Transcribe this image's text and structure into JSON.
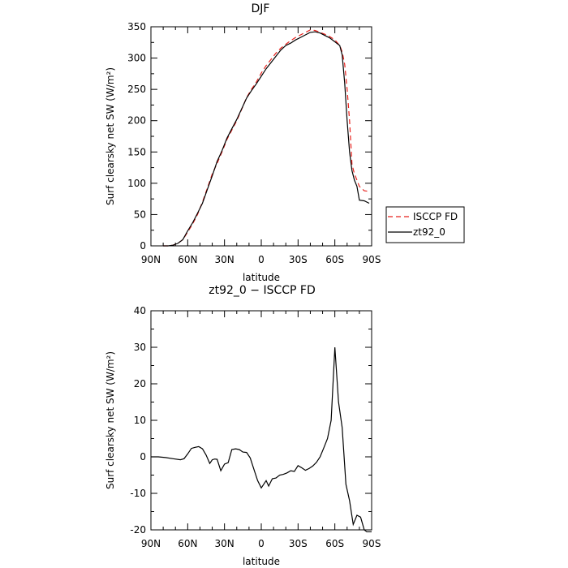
{
  "chart_data": [
    {
      "type": "line",
      "title": "DJF",
      "xlabel": "latitude",
      "ylabel": "Surf clearsky net SW (W/m²)",
      "xlim": [
        90,
        -90
      ],
      "ylim": [
        0,
        350
      ],
      "xticks": [
        {
          "value": 90,
          "label": "90N"
        },
        {
          "value": 60,
          "label": "60N"
        },
        {
          "value": 30,
          "label": "30N"
        },
        {
          "value": 0,
          "label": "0"
        },
        {
          "value": -30,
          "label": "30S"
        },
        {
          "value": -60,
          "label": "60S"
        },
        {
          "value": -90,
          "label": "90S"
        }
      ],
      "yticks": [
        0,
        50,
        100,
        150,
        200,
        250,
        300,
        350
      ],
      "legend_position": "right",
      "series": [
        {
          "name": "ISCCP FD",
          "color": "#e8211c",
          "dash": "dashed",
          "x": [
            80,
            76,
            72,
            68,
            64,
            60,
            56,
            52,
            48,
            44,
            40,
            36,
            32,
            28,
            24,
            20,
            16,
            12,
            8,
            4,
            0,
            -4,
            -8,
            -12,
            -16,
            -20,
            -24,
            -28,
            -32,
            -36,
            -40,
            -44,
            -48,
            -52,
            -56,
            -60,
            -64,
            -66,
            -68,
            -70,
            -72,
            -74,
            -76,
            -78,
            -80,
            -84,
            -88
          ],
          "y": [
            0,
            0,
            1,
            4,
            10,
            22,
            35,
            50,
            70,
            92,
            115,
            132,
            150,
            170,
            185,
            200,
            218,
            237,
            250,
            262,
            276,
            288,
            298,
            308,
            316,
            322,
            328,
            333,
            337,
            341,
            345,
            344,
            341,
            338,
            334,
            329,
            320,
            310,
            290,
            250,
            200,
            130,
            115,
            105,
            95,
            88,
            87
          ]
        },
        {
          "name": "zt92_0",
          "color": "#000000",
          "dash": "solid",
          "x": [
            80,
            76,
            72,
            68,
            64,
            60,
            56,
            52,
            48,
            44,
            40,
            36,
            32,
            28,
            24,
            20,
            16,
            12,
            8,
            4,
            0,
            -4,
            -8,
            -12,
            -16,
            -20,
            -24,
            -28,
            -32,
            -36,
            -40,
            -44,
            -48,
            -52,
            -56,
            -60,
            -64,
            -66,
            -68,
            -70,
            -72,
            -74,
            -76,
            -78,
            -80,
            -84,
            -88
          ],
          "y": [
            0,
            0,
            1,
            4,
            10,
            24,
            37,
            52,
            68,
            90,
            112,
            135,
            152,
            172,
            187,
            202,
            219,
            236,
            248,
            259,
            271,
            283,
            293,
            303,
            313,
            320,
            324,
            329,
            333,
            337,
            341,
            342,
            340,
            336,
            332,
            326,
            320,
            305,
            260,
            200,
            150,
            120,
            105,
            95,
            73,
            72,
            68
          ]
        }
      ]
    },
    {
      "type": "line",
      "title": "zt92_0 − ISCCP FD",
      "xlabel": "latitude",
      "ylabel": "Surf clearsky net SW (W/m²)",
      "xlim": [
        90,
        -90
      ],
      "ylim": [
        -20,
        40
      ],
      "xticks": [
        {
          "value": 90,
          "label": "90N"
        },
        {
          "value": 60,
          "label": "60N"
        },
        {
          "value": 30,
          "label": "30N"
        },
        {
          "value": 0,
          "label": "0"
        },
        {
          "value": -30,
          "label": "30S"
        },
        {
          "value": -60,
          "label": "60S"
        },
        {
          "value": -90,
          "label": "90S"
        }
      ],
      "yticks": [
        -20,
        -10,
        0,
        10,
        20,
        30,
        40
      ],
      "series": [
        {
          "color": "#000000",
          "dash": "solid",
          "x": [
            90,
            84,
            78,
            72,
            66,
            63,
            60,
            57,
            54,
            51,
            48,
            45,
            42,
            40,
            38,
            36,
            33,
            30,
            27,
            24,
            21,
            18,
            15,
            12,
            9,
            6,
            3,
            0,
            -2,
            -4,
            -6,
            -9,
            -12,
            -15,
            -18,
            -21,
            -24,
            -27,
            -30,
            -33,
            -36,
            -39,
            -42,
            -45,
            -48,
            -51,
            -54,
            -57,
            -60,
            -63,
            -66,
            -69,
            -72,
            -75,
            -78,
            -81,
            -84,
            -86,
            -88,
            -90
          ],
          "y": [
            0,
            0,
            -0.2,
            -0.5,
            -0.8,
            -0.5,
            0.8,
            2.3,
            2.6,
            2.8,
            2.2,
            0.5,
            -1.8,
            -0.8,
            -0.6,
            -0.7,
            -3.8,
            -2.0,
            -1.6,
            2.0,
            2.2,
            2.0,
            1.3,
            1.2,
            -0.3,
            -3.4,
            -6.5,
            -8.5,
            -7.5,
            -6.5,
            -8.0,
            -6.0,
            -5.8,
            -5.0,
            -4.8,
            -4.4,
            -3.8,
            -4.0,
            -2.4,
            -3.0,
            -3.7,
            -3.2,
            -2.5,
            -1.5,
            0.0,
            2.5,
            5.0,
            10.0,
            30.0,
            15.0,
            8.0,
            -7.5,
            -12.0,
            -18.5,
            -16.0,
            -16.5,
            -20.0,
            -20.5,
            -20.5,
            -20.5
          ]
        }
      ]
    }
  ]
}
